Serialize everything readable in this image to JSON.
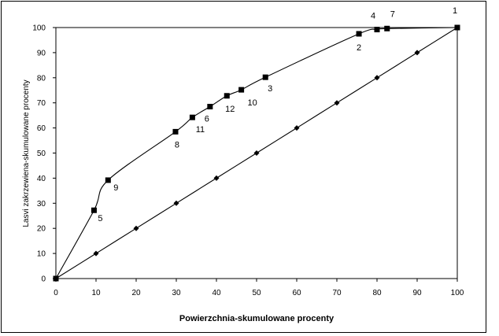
{
  "chart_data": {
    "type": "line",
    "title": "",
    "xlabel": "Powierzchnia-skumulowane procenty",
    "ylabel": "Lasvi zakrzewiena-skumulowane procenty",
    "xlim": [
      0,
      100
    ],
    "ylim": [
      0,
      100
    ],
    "xticks": [
      "0",
      "10",
      "20",
      "30",
      "40",
      "50",
      "60",
      "70",
      "80",
      "90",
      "100"
    ],
    "yticks": [
      "0",
      "10",
      "20",
      "30",
      "40",
      "50",
      "60",
      "70",
      "80",
      "90",
      "100"
    ],
    "grid": false,
    "legend": "none",
    "series": [
      {
        "marker": "square",
        "color": "#000000",
        "points": [
          {
            "x": 0,
            "y": 0,
            "label": ""
          },
          {
            "x": 9.5,
            "y": 27.2,
            "label": "5"
          },
          {
            "x": 13,
            "y": 39.2,
            "label": "9"
          },
          {
            "x": 29.8,
            "y": 58.5,
            "label": "8"
          },
          {
            "x": 34,
            "y": 64.2,
            "label": "11"
          },
          {
            "x": 38.4,
            "y": 68.5,
            "label": "6"
          },
          {
            "x": 42.6,
            "y": 72.8,
            "label": "12"
          },
          {
            "x": 46.2,
            "y": 75.2,
            "label": "10"
          },
          {
            "x": 52.2,
            "y": 80.2,
            "label": "3"
          },
          {
            "x": 75.5,
            "y": 97.5,
            "label": "2"
          },
          {
            "x": 80,
            "y": 99.2,
            "label": "4"
          },
          {
            "x": 82.5,
            "y": 99.6,
            "label": "7"
          },
          {
            "x": 100,
            "y": 100,
            "label": "1"
          }
        ]
      },
      {
        "marker": "diamond",
        "color": "#000000",
        "points": [
          {
            "x": 0,
            "y": 0
          },
          {
            "x": 10,
            "y": 10
          },
          {
            "x": 20,
            "y": 20
          },
          {
            "x": 30,
            "y": 30
          },
          {
            "x": 40,
            "y": 40
          },
          {
            "x": 50,
            "y": 50
          },
          {
            "x": 60,
            "y": 60
          },
          {
            "x": 70,
            "y": 70
          },
          {
            "x": 80,
            "y": 80
          },
          {
            "x": 90,
            "y": 90
          },
          {
            "x": 100,
            "y": 100
          }
        ]
      }
    ]
  }
}
